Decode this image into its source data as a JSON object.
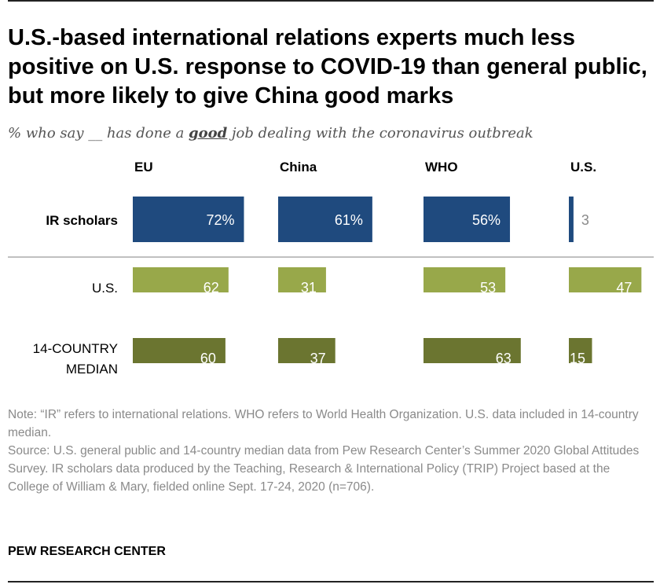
{
  "title": "U.S.-based international relations experts much less positive on U.S. response to COVID-19 than general public, but more likely to give China good marks",
  "subtitle": {
    "before": "% who say __ has done a ",
    "emphasis": "good",
    "after": " job dealing with the coronavirus outbreak"
  },
  "chart_data": {
    "type": "bar",
    "categories": [
      "EU",
      "China",
      "WHO",
      "U.S."
    ],
    "series": [
      {
        "name": "IR scholars",
        "values": [
          72,
          61,
          56,
          3
        ],
        "labels": [
          "72%",
          "61%",
          "56%",
          "3"
        ],
        "color": "#1f4a7e"
      },
      {
        "name": "U.S.",
        "values": [
          62,
          31,
          53,
          47
        ],
        "labels": [
          "62",
          "31",
          "53",
          "47"
        ],
        "color": "#98a84a"
      },
      {
        "name": "14-COUNTRY MEDIAN",
        "values": [
          60,
          37,
          63,
          15
        ],
        "labels": [
          "60",
          "37",
          "63",
          "15"
        ],
        "color": "#6b7530"
      }
    ]
  },
  "notes": {
    "note": "Note: “IR” refers to international relations. WHO refers to World Health Organization. U.S. data included in 14-country median.",
    "source": "Source: U.S. general public and 14-country median data from Pew Research Center’s Summer 2020 Global Attitudes Survey. IR scholars data produced by the Teaching, Research & International Policy (TRIP) Project based at the College of William & Mary, fielded online Sept. 17-24, 2020 (n=706)."
  },
  "brand": "PEW RESEARCH CENTER"
}
